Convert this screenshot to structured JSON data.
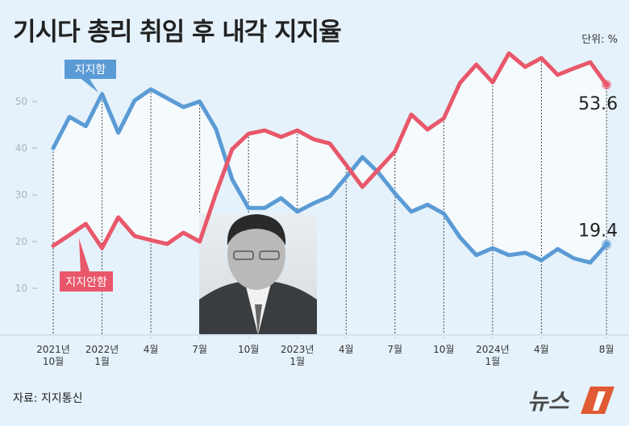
{
  "title": "기시다 총리 취임 후 내각 지지율",
  "unit": "단위: %",
  "source": "자료: 지지통신",
  "logo_text": "뉴스1",
  "colors": {
    "support": "#5b9bd5",
    "oppose": "#e8586a",
    "background": "#e5f2fb"
  },
  "chart_data": {
    "type": "line",
    "title": "기시다 총리 취임 후 내각 지지율",
    "x": [
      "2021-10",
      "2021-11",
      "2021-12",
      "2022-01",
      "2022-02",
      "2022-03",
      "2022-04",
      "2022-05",
      "2022-06",
      "2022-07",
      "2022-08",
      "2022-09",
      "2022-10",
      "2022-11",
      "2022-12",
      "2023-01",
      "2023-02",
      "2023-03",
      "2023-04",
      "2023-05",
      "2023-06",
      "2023-07",
      "2023-08",
      "2023-09",
      "2023-10",
      "2023-11",
      "2023-12",
      "2024-01",
      "2024-02",
      "2024-03",
      "2024-04",
      "2024-05",
      "2024-06",
      "2024-07",
      "2024-08"
    ],
    "series": [
      {
        "name": "지지함",
        "color": "#5b9bd5",
        "values": [
          40,
          46.7,
          44.7,
          51.6,
          43.3,
          50.2,
          52.6,
          50.7,
          48.8,
          50,
          44.1,
          33.3,
          27.2,
          27.2,
          29.3,
          26.4,
          28.2,
          29.7,
          33.8,
          38.1,
          34.7,
          30.3,
          26.4,
          27.9,
          26,
          20.9,
          17.1,
          18.6,
          17.1,
          17.6,
          16,
          18.4,
          16.4,
          15.5,
          19.4
        ]
      },
      {
        "name": "지지안함",
        "color": "#e8586a",
        "values": [
          19.1,
          21.4,
          23.8,
          18.6,
          25.2,
          21.2,
          20.3,
          19.5,
          21.9,
          20,
          30.3,
          39.8,
          43.1,
          43.8,
          42.4,
          43.8,
          41.9,
          41,
          36.4,
          31.7,
          35.5,
          39.3,
          47.2,
          44,
          46.4,
          54,
          57.9,
          54.1,
          60.3,
          57.4,
          59.3,
          55.7,
          57.1,
          58.4,
          53.6
        ]
      }
    ],
    "end_labels": [
      "19.4",
      "53.6"
    ],
    "yticks": [
      "10",
      "20",
      "30",
      "40",
      "50"
    ],
    "ylim": [
      0,
      62
    ],
    "xticks": [
      {
        "month": "2021-10",
        "line1": "2021년",
        "line2": "10월"
      },
      {
        "month": "2022-01",
        "line1": "2022년",
        "line2": "1월"
      },
      {
        "month": "2022-04",
        "line1": "4월",
        "line2": ""
      },
      {
        "month": "2022-07",
        "line1": "7월",
        "line2": ""
      },
      {
        "month": "2022-10",
        "line1": "10월",
        "line2": ""
      },
      {
        "month": "2023-01",
        "line1": "2023년",
        "line2": "1월"
      },
      {
        "month": "2023-04",
        "line1": "4월",
        "line2": ""
      },
      {
        "month": "2023-07",
        "line1": "7월",
        "line2": ""
      },
      {
        "month": "2023-10",
        "line1": "10월",
        "line2": ""
      },
      {
        "month": "2024-01",
        "line1": "2024년",
        "line2": "1월"
      },
      {
        "month": "2024-04",
        "line1": "4월",
        "line2": ""
      },
      {
        "month": "2024-08",
        "line1": "8월",
        "line2": ""
      }
    ],
    "grid": false,
    "legend": "inline callouts"
  }
}
